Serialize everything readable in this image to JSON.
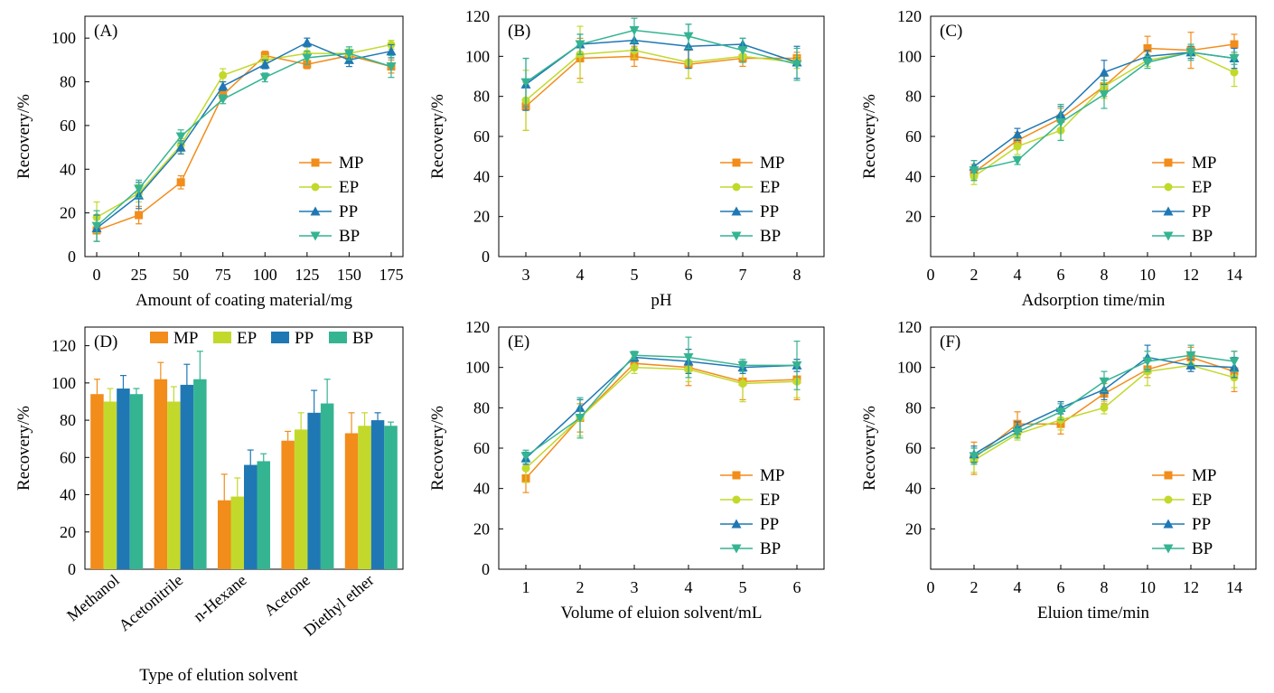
{
  "series_colors": {
    "MP": "#f28c1a",
    "EP": "#c2d92b",
    "PP": "#1f78b4",
    "BP": "#35b492"
  },
  "series_markers": {
    "MP": "square",
    "EP": "circle",
    "PP": "triangle-up",
    "BP": "triangle-down"
  },
  "chart_data": [
    {
      "panel": "(A)",
      "type": "line",
      "xlabel": "Amount of coating material/mg",
      "ylabel": "Recovery/%",
      "x": [
        0,
        25,
        50,
        75,
        100,
        125,
        150,
        175
      ],
      "xlim": [
        -7,
        182
      ],
      "ylim": [
        0,
        110
      ],
      "yticks": [
        0,
        20,
        40,
        60,
        80,
        100
      ],
      "legend_position": "bottom-right",
      "series": [
        {
          "name": "MP",
          "values": [
            12,
            19,
            34,
            74,
            92,
            88,
            92,
            87
          ],
          "errors": [
            5,
            4,
            3,
            2,
            2,
            2,
            2,
            3
          ]
        },
        {
          "name": "EP",
          "values": [
            18,
            29,
            51,
            83,
            90,
            93,
            93,
            97
          ],
          "errors": [
            7,
            4,
            3,
            3,
            2,
            3,
            2,
            2
          ]
        },
        {
          "name": "PP",
          "values": [
            13,
            28,
            50,
            78,
            88,
            98,
            90,
            94
          ],
          "errors": [
            6,
            6,
            3,
            2,
            2,
            2,
            3,
            3
          ]
        },
        {
          "name": "BP",
          "values": [
            14,
            31,
            55,
            72,
            82,
            91,
            93,
            87
          ],
          "errors": [
            7,
            4,
            3,
            2,
            2,
            3,
            3,
            5
          ]
        }
      ]
    },
    {
      "panel": "(B)",
      "type": "line",
      "xlabel": "pH",
      "ylabel": "Recovery/%",
      "x": [
        3,
        4,
        5,
        6,
        7,
        8
      ],
      "xlim": [
        2.5,
        8.5
      ],
      "ylim": [
        0,
        120
      ],
      "yticks": [
        0,
        20,
        40,
        60,
        80,
        100,
        120
      ],
      "legend_position": "bottom-right",
      "series": [
        {
          "name": "MP",
          "values": [
            75,
            99,
            100,
            96,
            99,
            99
          ],
          "errors": [
            12,
            10,
            5,
            7,
            4,
            3
          ]
        },
        {
          "name": "EP",
          "values": [
            78,
            101,
            103,
            97,
            100,
            97
          ],
          "errors": [
            15,
            14,
            4,
            8,
            3,
            3
          ]
        },
        {
          "name": "PP",
          "values": [
            86,
            106,
            108,
            105,
            106,
            97
          ],
          "errors": [
            13,
            5,
            5,
            11,
            3,
            8
          ]
        },
        {
          "name": "BP",
          "values": [
            87,
            106,
            113,
            110,
            103,
            96
          ],
          "errors": [
            12,
            5,
            6,
            6,
            6,
            8
          ]
        }
      ]
    },
    {
      "panel": "(C)",
      "type": "line",
      "xlabel": "Adsorption time/min",
      "ylabel": "Recovery/%",
      "x": [
        2,
        4,
        6,
        8,
        10,
        12,
        14
      ],
      "xlim": [
        0,
        15
      ],
      "ylim": [
        0,
        120
      ],
      "yticks": [
        20,
        40,
        60,
        80,
        100,
        120
      ],
      "xticks": [
        0,
        2,
        4,
        6,
        8,
        10,
        12,
        14
      ],
      "legend_position": "bottom-right",
      "series": [
        {
          "name": "MP",
          "values": [
            42,
            58,
            69,
            85,
            104,
            103,
            106
          ],
          "errors": [
            4,
            4,
            5,
            5,
            6,
            9,
            5
          ]
        },
        {
          "name": "EP",
          "values": [
            40,
            55,
            63,
            85,
            98,
            102,
            92
          ],
          "errors": [
            4,
            4,
            5,
            6,
            3,
            3,
            7
          ]
        },
        {
          "name": "PP",
          "values": [
            45,
            61,
            71,
            92,
            100,
            102,
            99
          ],
          "errors": [
            3,
            3,
            4,
            6,
            3,
            3,
            5
          ]
        },
        {
          "name": "BP",
          "values": [
            43,
            48,
            67,
            81,
            97,
            102,
            99
          ],
          "errors": [
            5,
            2,
            9,
            7,
            3,
            4,
            3
          ]
        }
      ]
    },
    {
      "panel": "(D)",
      "type": "bar",
      "xlabel": "Type of elution solvent",
      "ylabel": "Recovery/%",
      "categories": [
        "Methanol",
        "Acetonitrile",
        "n-Hexane",
        "Acetone",
        "Diethyl ether"
      ],
      "ylim": [
        0,
        130
      ],
      "yticks": [
        0,
        20,
        40,
        60,
        80,
        100,
        120
      ],
      "legend_position": "top",
      "series": [
        {
          "name": "MP",
          "values": [
            94,
            102,
            37,
            69,
            73
          ],
          "errors": [
            8,
            9,
            14,
            5,
            11
          ]
        },
        {
          "name": "EP",
          "values": [
            90,
            90,
            39,
            75,
            77
          ],
          "errors": [
            7,
            8,
            10,
            9,
            7
          ]
        },
        {
          "name": "PP",
          "values": [
            97,
            99,
            56,
            84,
            80
          ],
          "errors": [
            7,
            11,
            8,
            12,
            4
          ]
        },
        {
          "name": "BP",
          "values": [
            94,
            102,
            58,
            89,
            77
          ],
          "errors": [
            3,
            15,
            4,
            13,
            2
          ]
        }
      ]
    },
    {
      "panel": "(E)",
      "type": "line",
      "xlabel": "Volume of eluion solvent/mL",
      "ylabel": "Recovery/%",
      "x": [
        1,
        2,
        3,
        4,
        5,
        6
      ],
      "xlim": [
        0.5,
        6.5
      ],
      "ylim": [
        0,
        120
      ],
      "yticks": [
        0,
        20,
        40,
        60,
        80,
        100,
        120
      ],
      "legend_position": "bottom-right",
      "series": [
        {
          "name": "MP",
          "values": [
            45,
            75,
            102,
            100,
            93,
            94
          ],
          "errors": [
            7,
            7,
            3,
            9,
            9,
            10
          ]
        },
        {
          "name": "EP",
          "values": [
            50,
            75,
            100,
            99,
            92,
            93
          ],
          "errors": [
            7,
            9,
            3,
            6,
            9,
            8
          ]
        },
        {
          "name": "PP",
          "values": [
            55,
            80,
            105,
            103,
            100,
            101
          ],
          "errors": [
            3,
            4,
            2,
            6,
            3,
            3
          ]
        },
        {
          "name": "BP",
          "values": [
            56,
            75,
            106,
            105,
            101,
            101
          ],
          "errors": [
            3,
            10,
            2,
            10,
            3,
            12
          ]
        }
      ]
    },
    {
      "panel": "(F)",
      "type": "line",
      "xlabel": "Eluion time/min",
      "ylabel": "Recovery/%",
      "x": [
        2,
        4,
        6,
        8,
        10,
        12,
        14
      ],
      "xlim": [
        0,
        15
      ],
      "ylim": [
        0,
        120
      ],
      "yticks": [
        20,
        40,
        60,
        80,
        100,
        120
      ],
      "xticks": [
        0,
        2,
        4,
        6,
        8,
        10,
        12,
        14
      ],
      "legend_position": "bottom-right",
      "series": [
        {
          "name": "MP",
          "values": [
            55,
            72,
            72,
            87,
            99,
            105,
            98
          ],
          "errors": [
            8,
            6,
            5,
            5,
            4,
            5,
            10
          ]
        },
        {
          "name": "EP",
          "values": [
            54,
            67,
            74,
            80,
            98,
            101,
            95
          ],
          "errors": [
            6,
            3,
            5,
            3,
            7,
            3,
            5
          ]
        },
        {
          "name": "PP",
          "values": [
            57,
            70,
            80,
            89,
            105,
            101,
            100
          ],
          "errors": [
            4,
            3,
            3,
            5,
            6,
            3,
            5
          ]
        },
        {
          "name": "BP",
          "values": [
            56,
            68,
            78,
            93,
            103,
            106,
            103
          ],
          "errors": [
            4,
            3,
            4,
            5,
            5,
            5,
            5
          ]
        }
      ]
    }
  ]
}
